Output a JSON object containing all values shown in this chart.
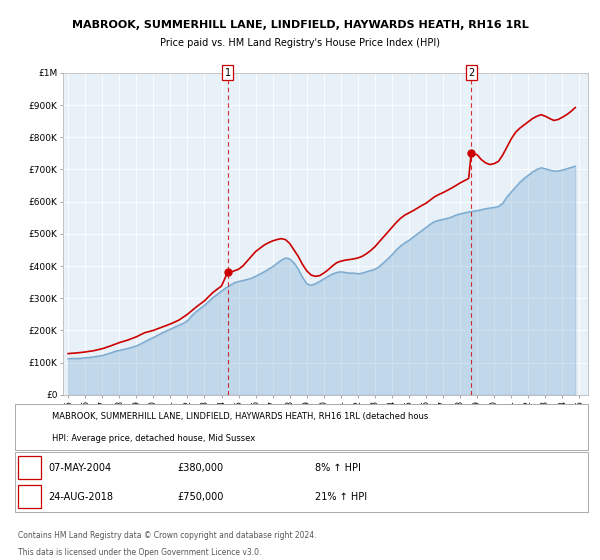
{
  "title": "MABROOK, SUMMERHILL LANE, LINDFIELD, HAYWARDS HEATH, RH16 1RL",
  "subtitle": "Price paid vs. HM Land Registry's House Price Index (HPI)",
  "background_color": "#ffffff",
  "plot_bg_color": "#e8f0f8",
  "grid_color": "#ffffff",
  "ylim": [
    0,
    1000000
  ],
  "xlim_start": 1994.7,
  "xlim_end": 2025.5,
  "yticks": [
    0,
    100000,
    200000,
    300000,
    400000,
    500000,
    600000,
    700000,
    800000,
    900000,
    1000000
  ],
  "ytick_labels": [
    "£0",
    "£100K",
    "£200K",
    "£300K",
    "£400K",
    "£500K",
    "£600K",
    "£700K",
    "£800K",
    "£900K",
    "£1M"
  ],
  "xticks": [
    1995,
    1996,
    1997,
    1998,
    1999,
    2000,
    2001,
    2002,
    2003,
    2004,
    2005,
    2006,
    2007,
    2008,
    2009,
    2010,
    2011,
    2012,
    2013,
    2014,
    2015,
    2016,
    2017,
    2018,
    2019,
    2020,
    2021,
    2022,
    2023,
    2024,
    2025
  ],
  "marker1_x": 2004.356,
  "marker1_y": 380000,
  "marker1_label": "1",
  "marker1_date": "07-MAY-2004",
  "marker1_price": "£380,000",
  "marker1_hpi": "8% ↑ HPI",
  "marker2_x": 2018.648,
  "marker2_y": 750000,
  "marker2_label": "2",
  "marker2_date": "24-AUG-2018",
  "marker2_price": "£750,000",
  "marker2_hpi": "21% ↑ HPI",
  "line1_color": "#cc0000",
  "line2_color": "#7aaad0",
  "line1_label": "MABROOK, SUMMERHILL LANE, LINDFIELD, HAYWARDS HEATH, RH16 1RL (detached hous",
  "line2_label": "HPI: Average price, detached house, Mid Sussex",
  "footer1": "Contains HM Land Registry data © Crown copyright and database right 2024.",
  "footer2": "This data is licensed under the Open Government Licence v3.0.",
  "hpi_data": [
    [
      1995.0,
      112000
    ],
    [
      1995.25,
      113000
    ],
    [
      1995.5,
      112500
    ],
    [
      1995.75,
      113500
    ],
    [
      1996.0,
      115000
    ],
    [
      1996.25,
      116000
    ],
    [
      1996.5,
      118000
    ],
    [
      1996.75,
      120000
    ],
    [
      1997.0,
      122000
    ],
    [
      1997.25,
      126000
    ],
    [
      1997.5,
      130000
    ],
    [
      1997.75,
      135000
    ],
    [
      1998.0,
      138000
    ],
    [
      1998.25,
      141000
    ],
    [
      1998.5,
      144000
    ],
    [
      1998.75,
      148000
    ],
    [
      1999.0,
      152000
    ],
    [
      1999.25,
      158000
    ],
    [
      1999.5,
      165000
    ],
    [
      1999.75,
      172000
    ],
    [
      2000.0,
      178000
    ],
    [
      2000.25,
      185000
    ],
    [
      2000.5,
      192000
    ],
    [
      2000.75,
      198000
    ],
    [
      2001.0,
      204000
    ],
    [
      2001.25,
      210000
    ],
    [
      2001.5,
      216000
    ],
    [
      2001.75,
      222000
    ],
    [
      2002.0,
      230000
    ],
    [
      2002.25,
      245000
    ],
    [
      2002.5,
      258000
    ],
    [
      2002.75,
      268000
    ],
    [
      2003.0,
      278000
    ],
    [
      2003.25,
      290000
    ],
    [
      2003.5,
      302000
    ],
    [
      2003.75,
      312000
    ],
    [
      2004.0,
      322000
    ],
    [
      2004.25,
      332000
    ],
    [
      2004.5,
      340000
    ],
    [
      2004.75,
      348000
    ],
    [
      2005.0,
      352000
    ],
    [
      2005.25,
      355000
    ],
    [
      2005.5,
      358000
    ],
    [
      2005.75,
      362000
    ],
    [
      2006.0,
      368000
    ],
    [
      2006.25,
      375000
    ],
    [
      2006.5,
      382000
    ],
    [
      2006.75,
      390000
    ],
    [
      2007.0,
      398000
    ],
    [
      2007.25,
      408000
    ],
    [
      2007.5,
      418000
    ],
    [
      2007.75,
      425000
    ],
    [
      2008.0,
      422000
    ],
    [
      2008.25,
      410000
    ],
    [
      2008.5,
      390000
    ],
    [
      2008.75,
      365000
    ],
    [
      2009.0,
      345000
    ],
    [
      2009.25,
      340000
    ],
    [
      2009.5,
      345000
    ],
    [
      2009.75,
      352000
    ],
    [
      2010.0,
      360000
    ],
    [
      2010.25,
      368000
    ],
    [
      2010.5,
      375000
    ],
    [
      2010.75,
      380000
    ],
    [
      2011.0,
      382000
    ],
    [
      2011.25,
      380000
    ],
    [
      2011.5,
      378000
    ],
    [
      2011.75,
      378000
    ],
    [
      2012.0,
      376000
    ],
    [
      2012.25,
      378000
    ],
    [
      2012.5,
      382000
    ],
    [
      2012.75,
      386000
    ],
    [
      2013.0,
      390000
    ],
    [
      2013.25,
      398000
    ],
    [
      2013.5,
      410000
    ],
    [
      2013.75,
      422000
    ],
    [
      2014.0,
      435000
    ],
    [
      2014.25,
      450000
    ],
    [
      2014.5,
      462000
    ],
    [
      2014.75,
      472000
    ],
    [
      2015.0,
      480000
    ],
    [
      2015.25,
      490000
    ],
    [
      2015.5,
      500000
    ],
    [
      2015.75,
      510000
    ],
    [
      2016.0,
      520000
    ],
    [
      2016.25,
      530000
    ],
    [
      2016.5,
      538000
    ],
    [
      2016.75,
      542000
    ],
    [
      2017.0,
      545000
    ],
    [
      2017.25,
      548000
    ],
    [
      2017.5,
      552000
    ],
    [
      2017.75,
      558000
    ],
    [
      2018.0,
      562000
    ],
    [
      2018.25,
      565000
    ],
    [
      2018.5,
      568000
    ],
    [
      2018.75,
      570000
    ],
    [
      2019.0,
      572000
    ],
    [
      2019.25,
      575000
    ],
    [
      2019.5,
      578000
    ],
    [
      2019.75,
      580000
    ],
    [
      2020.0,
      582000
    ],
    [
      2020.25,
      585000
    ],
    [
      2020.5,
      595000
    ],
    [
      2020.75,
      615000
    ],
    [
      2021.0,
      630000
    ],
    [
      2021.25,
      645000
    ],
    [
      2021.5,
      660000
    ],
    [
      2021.75,
      672000
    ],
    [
      2022.0,
      682000
    ],
    [
      2022.25,
      692000
    ],
    [
      2022.5,
      700000
    ],
    [
      2022.75,
      705000
    ],
    [
      2023.0,
      702000
    ],
    [
      2023.25,
      698000
    ],
    [
      2023.5,
      695000
    ],
    [
      2023.75,
      695000
    ],
    [
      2024.0,
      698000
    ],
    [
      2024.25,
      702000
    ],
    [
      2024.5,
      706000
    ],
    [
      2024.75,
      710000
    ]
  ],
  "price_data": [
    [
      1995.0,
      128000
    ],
    [
      1995.5,
      130000
    ],
    [
      1996.0,
      133000
    ],
    [
      1996.5,
      137000
    ],
    [
      1997.0,
      143000
    ],
    [
      1997.5,
      152000
    ],
    [
      1998.0,
      162000
    ],
    [
      1998.5,
      170000
    ],
    [
      1999.0,
      180000
    ],
    [
      1999.5,
      193000
    ],
    [
      2000.0,
      200000
    ],
    [
      2000.5,
      210000
    ],
    [
      2001.0,
      220000
    ],
    [
      2001.5,
      232000
    ],
    [
      2002.0,
      250000
    ],
    [
      2002.5,
      272000
    ],
    [
      2003.0,
      292000
    ],
    [
      2003.5,
      318000
    ],
    [
      2004.0,
      338000
    ],
    [
      2004.356,
      380000
    ],
    [
      2004.5,
      380000
    ],
    [
      2004.75,
      385000
    ],
    [
      2005.0,
      390000
    ],
    [
      2005.25,
      400000
    ],
    [
      2005.5,
      415000
    ],
    [
      2005.75,
      430000
    ],
    [
      2006.0,
      445000
    ],
    [
      2006.25,
      455000
    ],
    [
      2006.5,
      465000
    ],
    [
      2006.75,
      472000
    ],
    [
      2007.0,
      478000
    ],
    [
      2007.25,
      482000
    ],
    [
      2007.5,
      485000
    ],
    [
      2007.75,
      482000
    ],
    [
      2008.0,
      470000
    ],
    [
      2008.25,
      450000
    ],
    [
      2008.5,
      430000
    ],
    [
      2008.75,
      405000
    ],
    [
      2009.0,
      385000
    ],
    [
      2009.25,
      372000
    ],
    [
      2009.5,
      368000
    ],
    [
      2009.75,
      370000
    ],
    [
      2010.0,
      378000
    ],
    [
      2010.25,
      388000
    ],
    [
      2010.5,
      400000
    ],
    [
      2010.75,
      410000
    ],
    [
      2011.0,
      415000
    ],
    [
      2011.25,
      418000
    ],
    [
      2011.5,
      420000
    ],
    [
      2011.75,
      422000
    ],
    [
      2012.0,
      425000
    ],
    [
      2012.25,
      430000
    ],
    [
      2012.5,
      438000
    ],
    [
      2012.75,
      448000
    ],
    [
      2013.0,
      460000
    ],
    [
      2013.25,
      475000
    ],
    [
      2013.5,
      490000
    ],
    [
      2013.75,
      505000
    ],
    [
      2014.0,
      520000
    ],
    [
      2014.25,
      535000
    ],
    [
      2014.5,
      548000
    ],
    [
      2014.75,
      558000
    ],
    [
      2015.0,
      565000
    ],
    [
      2015.25,
      572000
    ],
    [
      2015.5,
      580000
    ],
    [
      2015.75,
      588000
    ],
    [
      2016.0,
      595000
    ],
    [
      2016.25,
      605000
    ],
    [
      2016.5,
      615000
    ],
    [
      2016.75,
      622000
    ],
    [
      2017.0,
      628000
    ],
    [
      2017.25,
      635000
    ],
    [
      2017.5,
      642000
    ],
    [
      2017.75,
      650000
    ],
    [
      2018.0,
      658000
    ],
    [
      2018.25,
      665000
    ],
    [
      2018.5,
      672000
    ],
    [
      2018.648,
      750000
    ],
    [
      2018.75,
      750000
    ],
    [
      2019.0,
      745000
    ],
    [
      2019.25,
      730000
    ],
    [
      2019.5,
      720000
    ],
    [
      2019.75,
      715000
    ],
    [
      2020.0,
      718000
    ],
    [
      2020.25,
      725000
    ],
    [
      2020.5,
      745000
    ],
    [
      2020.75,
      770000
    ],
    [
      2021.0,
      795000
    ],
    [
      2021.25,
      815000
    ],
    [
      2021.5,
      828000
    ],
    [
      2021.75,
      838000
    ],
    [
      2022.0,
      848000
    ],
    [
      2022.25,
      858000
    ],
    [
      2022.5,
      865000
    ],
    [
      2022.75,
      870000
    ],
    [
      2023.0,
      865000
    ],
    [
      2023.25,
      858000
    ],
    [
      2023.5,
      852000
    ],
    [
      2023.75,
      855000
    ],
    [
      2024.0,
      862000
    ],
    [
      2024.25,
      870000
    ],
    [
      2024.5,
      880000
    ],
    [
      2024.75,
      892000
    ]
  ]
}
